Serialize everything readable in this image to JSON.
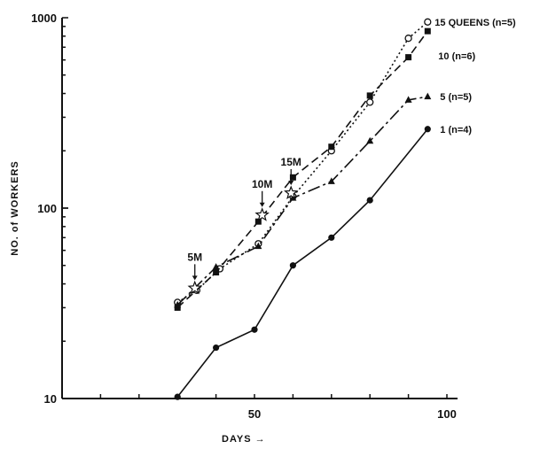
{
  "chart_data": {
    "type": "line",
    "title": "",
    "xlabel": "DAYS →",
    "ylabel": "NO. of WORKERS",
    "xlim": [
      0,
      100
    ],
    "ylim": [
      10,
      1000
    ],
    "yscale": "log",
    "xticks": [
      50,
      100
    ],
    "yticks": [
      10,
      100,
      1000
    ],
    "grid": false,
    "legend": "labels at line ends",
    "series": [
      {
        "name": "15 QUEENS (n=5)",
        "marker": "open-circle",
        "linestyle": "dotted",
        "x": [
          30,
          35,
          41,
          51,
          60,
          70,
          80,
          90,
          95
        ],
        "y": [
          32,
          37,
          48,
          65,
          115,
          200,
          360,
          780,
          950
        ]
      },
      {
        "name": "10 (n=6)",
        "marker": "filled-square",
        "linestyle": "dashed",
        "x": [
          30,
          40,
          51,
          60,
          70,
          80,
          90,
          95
        ],
        "y": [
          30,
          46,
          85,
          145,
          210,
          390,
          620,
          850
        ]
      },
      {
        "name": "5 (n=5)",
        "marker": "filled-triangle",
        "linestyle": "dash-dot",
        "x": [
          30,
          40,
          51,
          60,
          70,
          80,
          90,
          95
        ],
        "y": [
          31,
          49,
          63,
          113,
          138,
          225,
          370,
          385
        ]
      },
      {
        "name": "1 (n=4)",
        "marker": "filled-circle",
        "linestyle": "solid",
        "x": [
          30,
          40,
          50,
          60,
          70,
          80,
          95
        ],
        "y": [
          10.2,
          18.5,
          23,
          50,
          70,
          110,
          260
        ]
      }
    ],
    "annotations": [
      {
        "text": "5M",
        "x": 34.5,
        "y": 38
      },
      {
        "text": "10M",
        "x": 52,
        "y": 92
      },
      {
        "text": "15M",
        "x": 59.5,
        "y": 120
      }
    ]
  }
}
